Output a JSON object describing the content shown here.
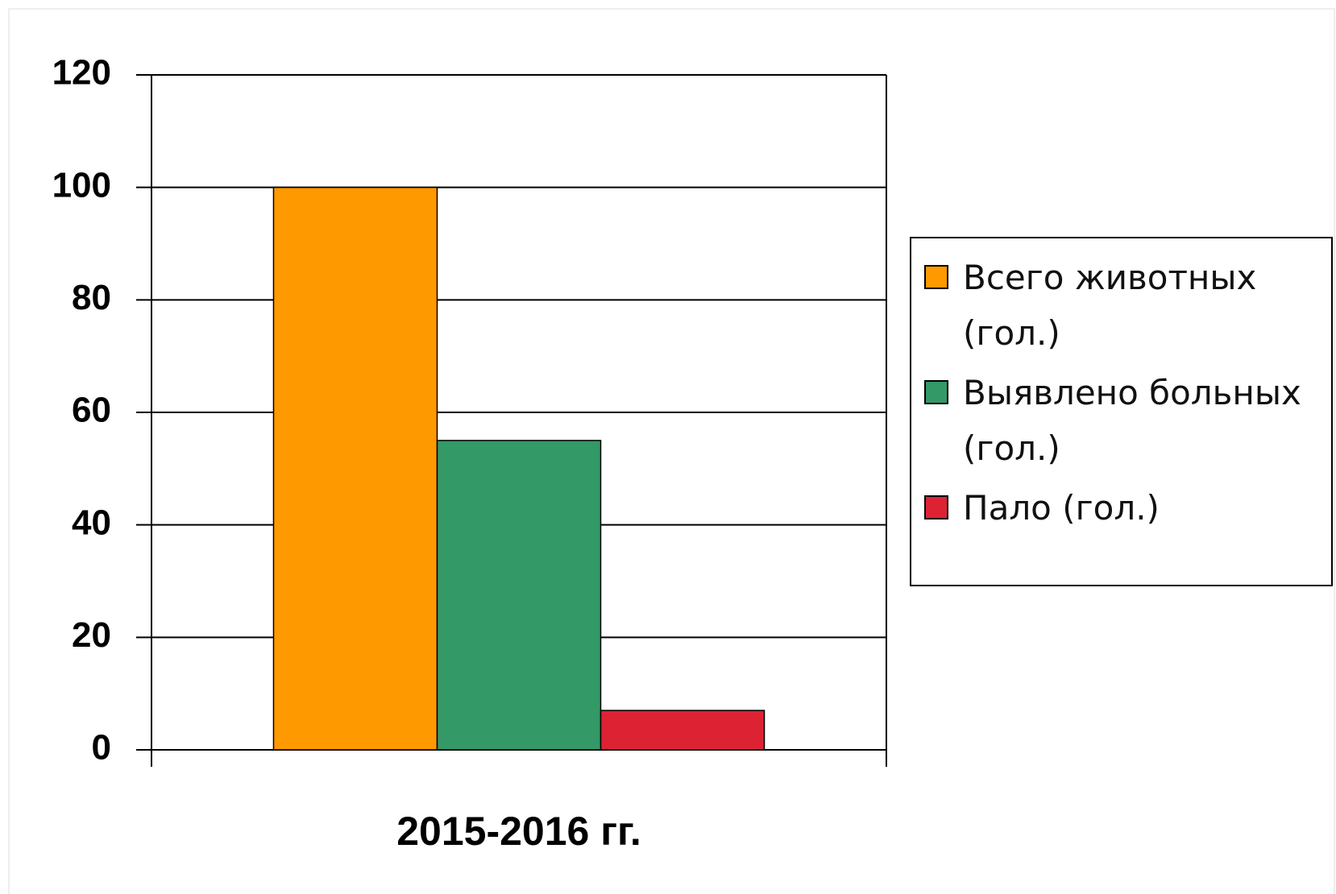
{
  "chart_data": {
    "type": "bar",
    "categories": [
      "2015-2016 гг."
    ],
    "series": [
      {
        "name": "Всего животных (гол.)",
        "color": "#ff9900",
        "values": [
          100
        ]
      },
      {
        "name": "Выявлено больных (гол.)",
        "color": "#339966",
        "values": [
          55
        ]
      },
      {
        "name": "Пало (гол.)",
        "color": "#dd2233",
        "values": [
          7
        ]
      }
    ],
    "ylim": [
      0,
      120
    ],
    "yticks": [
      0,
      20,
      40,
      60,
      80,
      100,
      120
    ],
    "grid": true,
    "legend": "right"
  }
}
